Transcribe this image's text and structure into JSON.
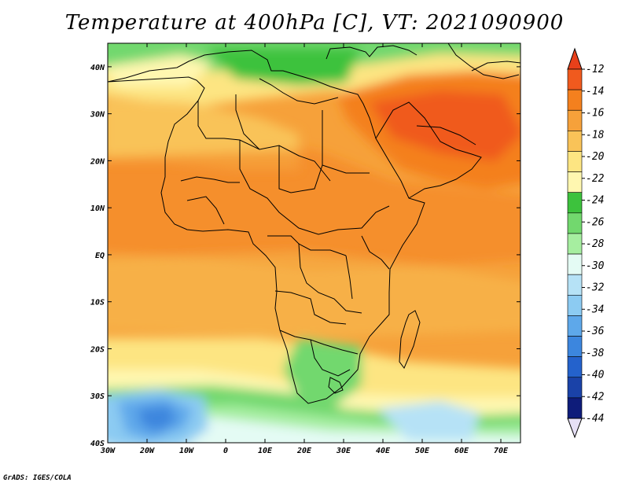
{
  "title": "Temperature at 400hPa [C], VT: 2021090900",
  "credit": "GrADS: IGES/COLA",
  "map": {
    "projection": "lat-lon",
    "lon_range": [
      -30,
      75
    ],
    "lat_range": [
      -40,
      45
    ],
    "lon_ticks": [
      "30W",
      "20W",
      "10W",
      "0",
      "10E",
      "20E",
      "30E",
      "40E",
      "50E",
      "60E",
      "70E"
    ],
    "lat_ticks": [
      "40S",
      "30S",
      "20S",
      "10S",
      "EQ",
      "10N",
      "20N",
      "30N",
      "40N"
    ],
    "overlay": "country boundaries and coastlines"
  },
  "colorbar": {
    "labels": [
      "-12",
      "-14",
      "-16",
      "-18",
      "-20",
      "-22",
      "-24",
      "-26",
      "-28",
      "-30",
      "-32",
      "-34",
      "-36",
      "-38",
      "-40",
      "-42",
      "-44"
    ],
    "colors": [
      "#f05a1e",
      "#f4801e",
      "#f6a13a",
      "#f9c358",
      "#fde582",
      "#fff7b0",
      "#3dc23d",
      "#72d86e",
      "#a6eea0",
      "#e4fbf4",
      "#b6e2f6",
      "#8ccbf2",
      "#5ea8ea",
      "#3c86de",
      "#2462cc",
      "#1a42a8",
      "#0e1c7a"
    ],
    "over_color": "#e8401a",
    "under_color": "#e6e0f6"
  }
}
